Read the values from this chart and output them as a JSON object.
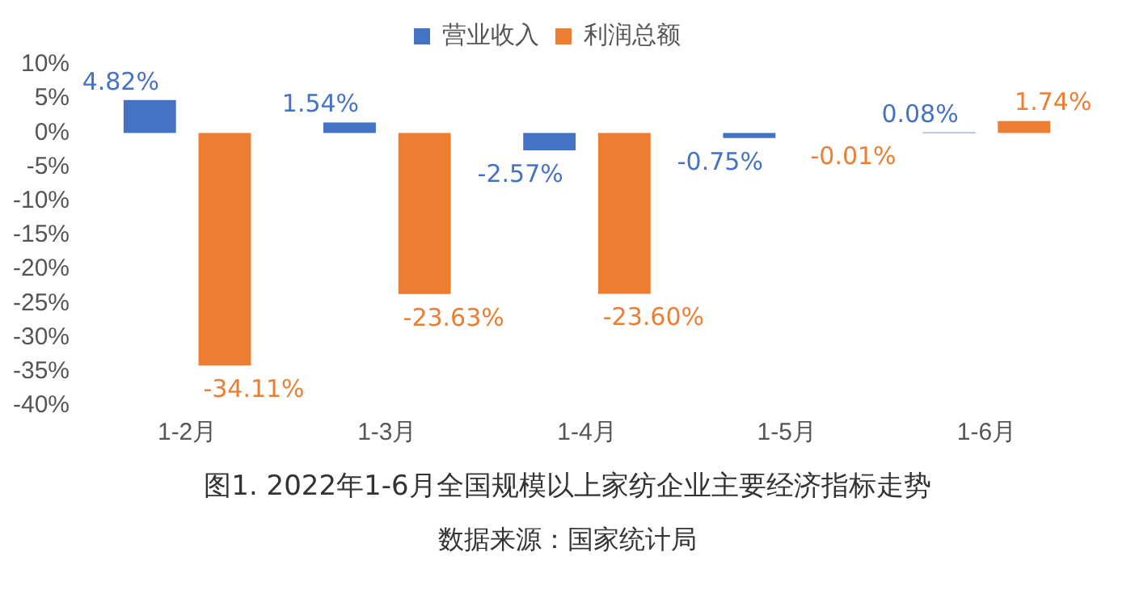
{
  "chart_data": {
    "type": "bar",
    "title": "图1. 2022年1-6月全国规模以上家纺企业主要经济指标走势",
    "annotations": [
      "数据来源：国家统计局"
    ],
    "categories": [
      "1-2月",
      "1-3月",
      "1-4月",
      "1-5月",
      "1-6月"
    ],
    "series": [
      {
        "name": "营业收入",
        "color": "#4472c4",
        "values": [
          4.82,
          1.54,
          -2.57,
          -0.75,
          0.08
        ],
        "value_labels": [
          "4.82%",
          "1.54%",
          "-2.57%",
          "-0.75%",
          "0.08%"
        ]
      },
      {
        "name": "利润总额",
        "color": "#ed7d31",
        "values": [
          -34.11,
          -23.63,
          -23.6,
          -0.01,
          1.74
        ],
        "value_labels": [
          "-34.11%",
          "-23.63%",
          "-23.60%",
          "-0.01%",
          "1.74%"
        ]
      }
    ],
    "ylim": [
      -40,
      10
    ],
    "yticks": [
      {
        "value": 10,
        "label": "10%"
      },
      {
        "value": 5,
        "label": "5%"
      },
      {
        "value": 0,
        "label": "0%"
      },
      {
        "value": -5,
        "label": "-5%"
      },
      {
        "value": -10,
        "label": "-10%"
      },
      {
        "value": -15,
        "label": "-15%"
      },
      {
        "value": -20,
        "label": "-20%"
      },
      {
        "value": -25,
        "label": "-25%"
      },
      {
        "value": -30,
        "label": "-30%"
      },
      {
        "value": -35,
        "label": "-35%"
      },
      {
        "value": -40,
        "label": "-40%"
      }
    ],
    "legend": "top",
    "grid": false
  }
}
